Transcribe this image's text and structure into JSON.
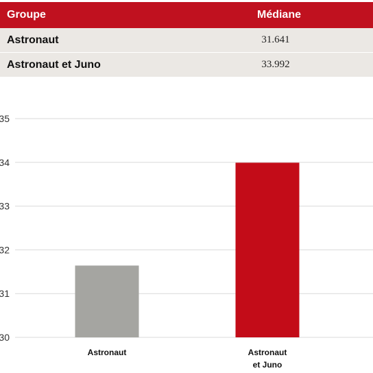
{
  "table": {
    "headers": {
      "group": "Groupe",
      "median": "Médiane"
    },
    "rows": [
      {
        "group": "Astronaut",
        "median": "31.641"
      },
      {
        "group": "Astronaut et Juno",
        "median": "33.992"
      }
    ],
    "header_color": "#c0111f",
    "row_color": "#ebe8e4"
  },
  "chart_data": {
    "type": "bar",
    "categories": [
      [
        "Astronaut"
      ],
      [
        "Astronaut",
        "et Juno"
      ]
    ],
    "values": [
      31.641,
      33.992
    ],
    "colors": [
      "#a5a5a1",
      "#c30c18"
    ],
    "ylim": [
      30,
      35
    ],
    "yticks": [
      30,
      31,
      32,
      33,
      34,
      35
    ],
    "grid": true,
    "title": "",
    "xlabel": "",
    "ylabel": ""
  }
}
